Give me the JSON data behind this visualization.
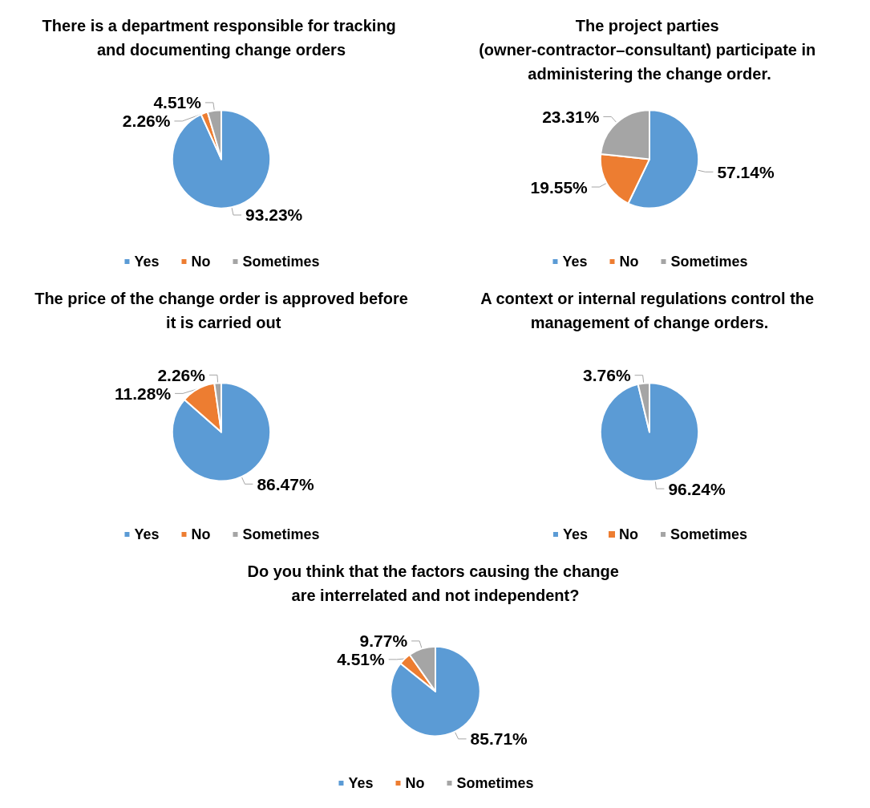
{
  "chart_data": [
    {
      "type": "pie",
      "title": "There is a department responsible for tracking and documenting change orders",
      "categories": [
        "Yes",
        "No",
        "Sometimes"
      ],
      "values": [
        93.23,
        2.26,
        4.51
      ],
      "value_labels": [
        "93.23%",
        "2.26%",
        "4.51%"
      ],
      "colors": [
        "#5b9bd5",
        "#ed7d31",
        "#a5a5a5"
      ],
      "legend": "bottom"
    },
    {
      "type": "pie",
      "title": "The project parties (owner-contractor–consultant) participate in administering the change order.",
      "categories": [
        "Yes",
        "No",
        "Sometimes"
      ],
      "values": [
        57.14,
        19.55,
        23.31
      ],
      "value_labels": [
        "57.14%",
        "19.55%",
        "23.31%"
      ],
      "colors": [
        "#5b9bd5",
        "#ed7d31",
        "#a5a5a5"
      ],
      "legend": "bottom"
    },
    {
      "type": "pie",
      "title": "The price of the change order is approved before it is carried out",
      "categories": [
        "Yes",
        "No",
        "Sometimes"
      ],
      "values": [
        86.47,
        11.28,
        2.26
      ],
      "value_labels": [
        "86.47%",
        "11.28%",
        "2.26%"
      ],
      "colors": [
        "#5b9bd5",
        "#ed7d31",
        "#a5a5a5"
      ],
      "legend": "bottom"
    },
    {
      "type": "pie",
      "title": "A context or internal regulations control the management of change orders.",
      "categories": [
        "Yes",
        "No",
        "Sometimes"
      ],
      "values": [
        96.24,
        0,
        3.76
      ],
      "value_labels": [
        "96.24%",
        null,
        "3.76%"
      ],
      "colors": [
        "#5b9bd5",
        "#ed7d31",
        "#a5a5a5"
      ],
      "legend": "bottom"
    },
    {
      "type": "pie",
      "title": "Do you think that the factors causing the change are interrelated and not independent?",
      "categories": [
        "Yes",
        "No",
        "Sometimes"
      ],
      "values": [
        85.71,
        4.51,
        9.77
      ],
      "value_labels": [
        "85.71%",
        "4.51%",
        "9.77%"
      ],
      "colors": [
        "#5b9bd5",
        "#ed7d31",
        "#a5a5a5"
      ],
      "legend": "bottom"
    }
  ]
}
